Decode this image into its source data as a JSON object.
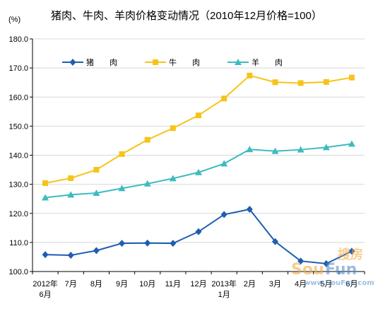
{
  "unit_label": "(%)",
  "chart_data": {
    "type": "line",
    "title": "猪肉、牛肉、羊肉价格变动情况（2010年12月价格=100）",
    "xlabel": "",
    "ylabel": "",
    "ylim": [
      100,
      180
    ],
    "yticks": [
      "100.0",
      "110.0",
      "120.0",
      "130.0",
      "140.0",
      "150.0",
      "160.0",
      "170.0",
      "180.0"
    ],
    "categories": [
      "2012年 6月",
      "7月",
      "8月",
      "9月",
      "10月",
      "11月",
      "12月",
      "2013年 1月",
      "2月",
      "3月",
      "4月",
      "5月",
      "6月"
    ],
    "category_lines": [
      [
        "2012年",
        "6月"
      ],
      [
        "7月"
      ],
      [
        "8月"
      ],
      [
        "9月"
      ],
      [
        "10月"
      ],
      [
        "11月"
      ],
      [
        "12月"
      ],
      [
        "2013年",
        "1月"
      ],
      [
        "2月"
      ],
      [
        "3月"
      ],
      [
        "4月"
      ],
      [
        "5月"
      ],
      [
        "6月"
      ]
    ],
    "grid": true,
    "legend_position": "top",
    "series": [
      {
        "name": "猪　　肉",
        "color": "#1f5eb0",
        "marker": "diamond",
        "values": [
          105.8,
          105.6,
          107.2,
          109.7,
          109.8,
          109.7,
          113.7,
          119.6,
          121.4,
          110.3,
          103.6,
          102.7,
          107.0
        ]
      },
      {
        "name": "牛　　肉",
        "color": "#f6c41a",
        "marker": "square",
        "values": [
          130.4,
          132.1,
          135.0,
          140.4,
          145.3,
          149.3,
          153.7,
          159.5,
          167.4,
          165.1,
          164.8,
          165.2,
          166.7
        ]
      },
      {
        "name": "羊　　肉",
        "color": "#3cbcbf",
        "marker": "triangle",
        "values": [
          125.4,
          126.4,
          127.0,
          128.6,
          130.2,
          132.0,
          134.1,
          137.1,
          142.0,
          141.4,
          141.9,
          142.7,
          143.9
        ]
      }
    ]
  },
  "watermark": {
    "brand_orange": "Sou",
    "brand_blue": "Fun",
    "cn": "搜房",
    "url": "www.SouFun.com",
    "color_orange": "#f2a63a",
    "color_blue": "#4d86c8"
  }
}
